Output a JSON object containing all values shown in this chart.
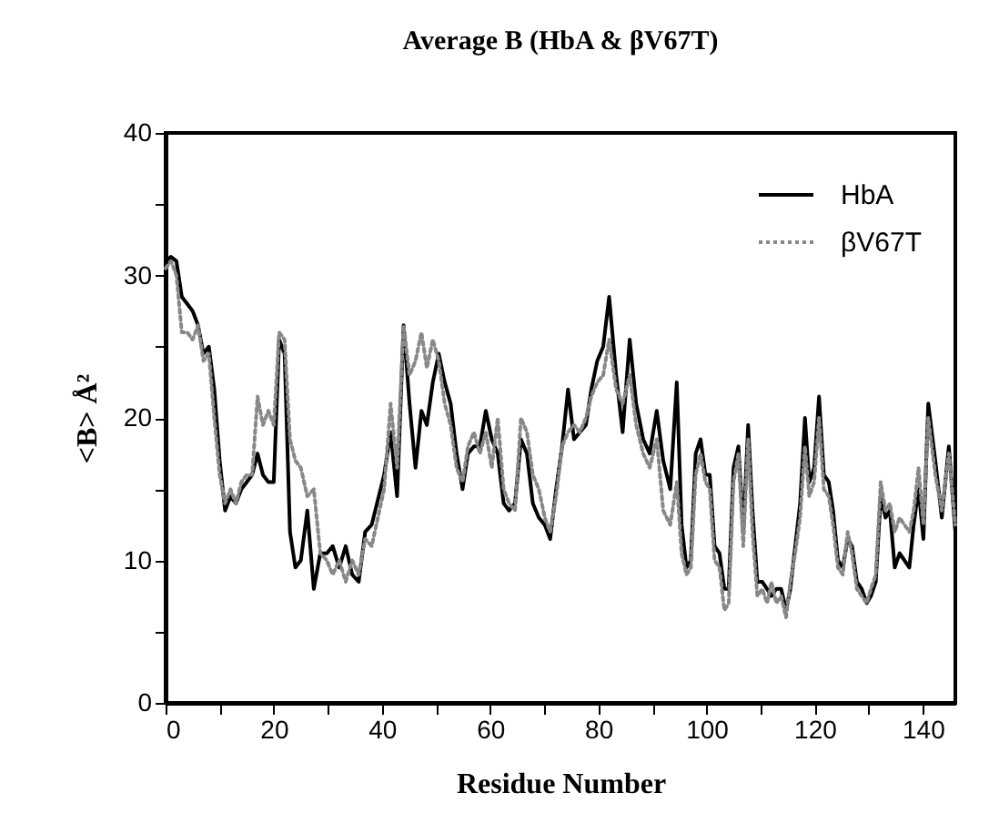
{
  "chart_data": {
    "type": "line",
    "title": "Average B (HbA & βV67T)",
    "xlabel": "Residue  Number",
    "ylabel": "<B> Å²",
    "x": [
      0,
      1,
      2,
      3,
      4,
      5,
      6,
      7,
      8,
      9,
      10,
      11,
      12,
      13,
      14,
      15,
      16,
      17,
      18,
      19,
      20,
      21,
      22,
      23,
      24,
      25,
      26.2,
      27.4,
      28.6,
      29.8,
      30.9,
      32.1,
      33.3,
      34.5,
      35.7,
      36.9,
      38.1,
      40.4,
      41.6,
      42.8,
      44,
      45.1,
      46.2,
      47.3,
      48.3,
      49.4,
      50.5,
      51.6,
      52.7,
      53.8,
      54.9,
      55.9,
      57,
      58.1,
      59.2,
      60.3,
      61.4,
      62.5,
      63.5,
      64.6,
      65.7,
      66.8,
      67.9,
      69,
      70.1,
      71.1,
      72.2,
      73.3,
      74.4,
      75.5,
      76.6,
      77.7,
      78.7,
      79.8,
      80.9,
      82,
      83.3,
      84.5,
      85.8,
      87,
      88.3,
      89.5,
      90.8,
      92,
      93.3,
      94.5,
      95.4,
      96.3,
      97.1,
      98,
      98.9,
      99.8,
      100.6,
      101.5,
      102.4,
      103.3,
      104.1,
      105,
      105.9,
      106.8,
      107.7,
      108.5,
      109.4,
      110.3,
      111.2,
      112,
      112.9,
      113.8,
      114.7,
      115.5,
      116.4,
      117.3,
      118.2,
      119,
      119.9,
      120.8,
      121.7,
      122.6,
      123.4,
      124.3,
      125.2,
      126.1,
      126.9,
      127.8,
      128.7,
      129.6,
      130.4,
      131.3,
      132.2,
      133.1,
      133.9,
      134.8,
      135.7,
      136.6,
      137.5,
      138.3,
      139.2,
      140.1,
      141,
      142.3,
      143.5,
      144.8,
      146
    ],
    "series": [
      {
        "name": "HbA",
        "color": "#000000",
        "line_style": "solid",
        "values": [
          31,
          31.3,
          31,
          28.5,
          28,
          27.5,
          26.5,
          24.5,
          25,
          22,
          17,
          13.5,
          14.5,
          14,
          15,
          15.5,
          16,
          17.5,
          16,
          15.5,
          15.5,
          25.5,
          24.5,
          12,
          9.5,
          10,
          13.5,
          8,
          10.5,
          10.5,
          11,
          9.5,
          11,
          9,
          8.5,
          12,
          12.5,
          16,
          19,
          14.5,
          26.5,
          21,
          16.5,
          20.5,
          19.5,
          22.5,
          24.5,
          22.5,
          21,
          17.5,
          15,
          17.5,
          18,
          18,
          20.5,
          18.5,
          17.5,
          14,
          13.5,
          14,
          18.5,
          17.5,
          14,
          13,
          12.5,
          11.5,
          15,
          18,
          22,
          18.5,
          19,
          19.5,
          22,
          24,
          25,
          28.5,
          23,
          19,
          25.5,
          21,
          18.5,
          17.5,
          20.5,
          17,
          15,
          22.5,
          12.5,
          9.5,
          10,
          17.5,
          18.5,
          16,
          16,
          11,
          10.5,
          8,
          8,
          16.5,
          18,
          12,
          19.5,
          13.5,
          8.5,
          8.5,
          8,
          7.5,
          8,
          8,
          6.5,
          8,
          11,
          14,
          20,
          15.5,
          16.5,
          21.5,
          16,
          15.5,
          13.5,
          10,
          9.5,
          11.5,
          11,
          8.5,
          8,
          7,
          7.5,
          8.5,
          14.5,
          13,
          13.5,
          9.5,
          10.5,
          10,
          9.5,
          12.5,
          15,
          11.5,
          21,
          17,
          13,
          18,
          12
        ]
      },
      {
        "name": "βV67T",
        "color": "#888888",
        "line_style": "dotted",
        "values": [
          30.5,
          31,
          30,
          26,
          26,
          25.5,
          26.5,
          24,
          24.5,
          20,
          16,
          14,
          15,
          14,
          15.5,
          16,
          16,
          21.5,
          19.5,
          20.5,
          19.5,
          26,
          25.5,
          18.5,
          17,
          16.5,
          14.5,
          15,
          10.5,
          10,
          9,
          10,
          8.5,
          10,
          9,
          11.5,
          11,
          15,
          21,
          16.5,
          26.5,
          23,
          24,
          26,
          23.5,
          25.5,
          24,
          21,
          19.5,
          16.5,
          15.5,
          18,
          19,
          17.5,
          19,
          16.5,
          20,
          15,
          14,
          13.5,
          20,
          19,
          16,
          15,
          13,
          12,
          14.5,
          18,
          19,
          19.5,
          19,
          20,
          21.5,
          22.5,
          23,
          25.5,
          22,
          21,
          23,
          19.5,
          17.5,
          16.5,
          18.5,
          13.5,
          12.5,
          15.5,
          10.5,
          9,
          9.5,
          16,
          17.5,
          15.5,
          15,
          10,
          9.5,
          6.5,
          7,
          15.5,
          17.5,
          11,
          18.5,
          12,
          7.5,
          8,
          7,
          8.5,
          7,
          7.5,
          6,
          8.5,
          10.5,
          13,
          18,
          14.5,
          15.5,
          20,
          15,
          14.5,
          12.5,
          9.5,
          9,
          12,
          10.5,
          8,
          7.5,
          7,
          8,
          9,
          15.5,
          13.5,
          14,
          12,
          13,
          12.5,
          12,
          13.5,
          16.5,
          12.5,
          20,
          16,
          13.5,
          17.5,
          12.5
        ]
      }
    ],
    "xlim": [
      0,
      146
    ],
    "xticks": [
      0,
      {
        "value": 10,
        "label": null
      },
      20,
      {
        "value": 30,
        "label": null
      },
      40,
      {
        "value": 50,
        "label": null
      },
      60,
      {
        "value": 70,
        "label": null
      },
      80,
      {
        "value": 90,
        "label": null
      },
      100,
      {
        "value": 110,
        "label": null
      },
      120,
      {
        "value": 130,
        "label": null
      },
      140
    ],
    "ylim": [
      0,
      40
    ],
    "yticks": [
      0,
      {
        "value": 5,
        "label": null
      },
      10,
      {
        "value": 15,
        "label": null
      },
      20,
      {
        "value": 25,
        "label": null
      },
      30,
      {
        "value": 35,
        "label": null
      },
      40
    ],
    "grid": false,
    "legend": "top right"
  }
}
